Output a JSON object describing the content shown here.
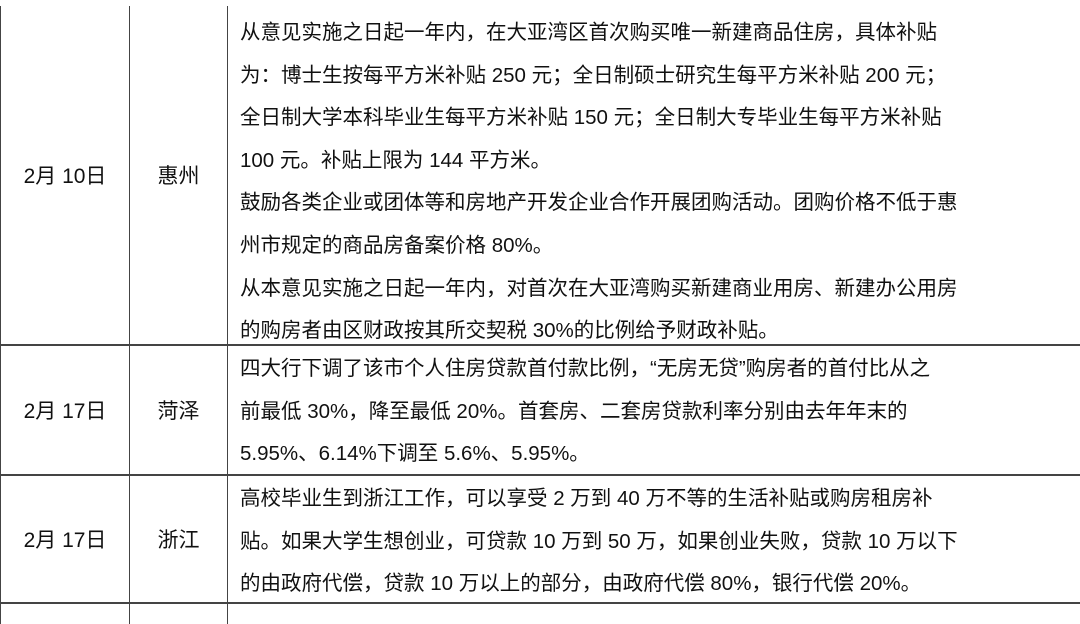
{
  "rows": [
    {
      "date": "2月 10日",
      "city": "惠州",
      "lines": [
        "从意见实施之日起一年内，在大亚湾区首次购买唯一新建商品住房，具体补贴",
        "为：博士生按每平方米补贴 250 元；全日制硕士研究生每平方米补贴 200 元；",
        "全日制大学本科毕业生每平方米补贴 150 元；全日制大专毕业生每平方米补贴",
        "100 元。补贴上限为 144 平方米。",
        "鼓励各类企业或团体等和房地产开发企业合作开展团购活动。团购价格不低于惠",
        "州市规定的商品房备案价格 80%。",
        "从本意见实施之日起一年内，对首次在大亚湾购买新建商业用房、新建办公用房",
        "的购房者由区财政按其所交契税 30%的比例给予财政补贴。"
      ]
    },
    {
      "date": "2月 17日",
      "city": "菏泽",
      "lines": [
        "四大行下调了该市个人住房贷款首付款比例，“无房无贷”购房者的首付比从之",
        "前最低 30%，降至最低 20%。首套房、二套房贷款利率分别由去年年末的",
        "5.95%、6.14%下调至 5.6%、5.95%。"
      ]
    },
    {
      "date": "2月 17日",
      "city": "浙江",
      "lines": [
        "高校毕业生到浙江工作，可以享受 2 万到 40 万不等的生活补贴或购房租房补",
        "贴。如果大学生想创业，可贷款 10 万到 50 万，如果创业失败，贷款 10 万以下",
        "的由政府代偿，贷款 10 万以上的部分，由政府代偿 80%，银行代偿 20%。"
      ]
    }
  ]
}
